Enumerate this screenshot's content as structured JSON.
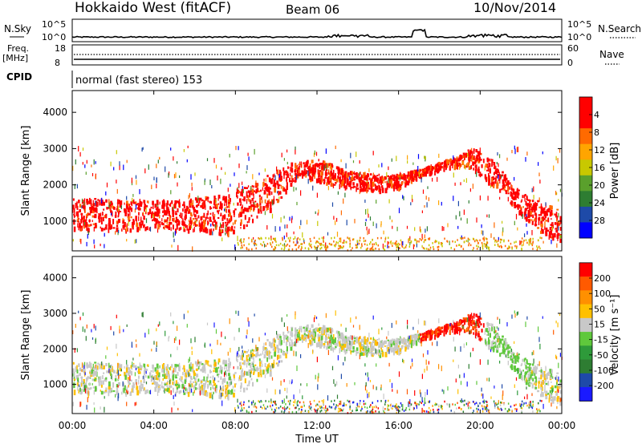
{
  "header": {
    "station": "Hokkaido West (fitACF)",
    "beam": "Beam 06",
    "date": "10/Nov/2014"
  },
  "noise_panel": {
    "left_label": "N.Sky",
    "right_label": "N.Search",
    "ticks": [
      "10^5",
      "10^0"
    ]
  },
  "freq_panel": {
    "left_label_line1": "Freq.",
    "left_label_line2": "[MHz]",
    "left_ticks": [
      "18",
      "8"
    ],
    "right_label": "Nave",
    "right_ticks": [
      "60",
      "0"
    ]
  },
  "cpid_panel": {
    "label": "CPID",
    "value": "normal (fast stereo) 153"
  },
  "chart_data": [
    {
      "type": "heatmap",
      "name": "power",
      "ylabel": "Slant Range [km]",
      "ylim": [
        180,
        4600
      ],
      "yticks": [
        1000,
        2000,
        3000,
        4000
      ],
      "xlim": [
        0,
        24
      ],
      "colorbar": {
        "label": "Power [dB]",
        "ticks": [
          "4",
          "8",
          "12",
          "16",
          "20",
          "24",
          "28"
        ],
        "colors": [
          "#0000ff",
          "#1e4aa8",
          "#2e7d32",
          "#5aa02c",
          "#c8c800",
          "#ffa500",
          "#ff6a00",
          "#ff0000",
          "#ff0000"
        ]
      }
    },
    {
      "type": "heatmap",
      "name": "velocity",
      "ylabel": "Slant Range [km]",
      "ylim": [
        180,
        4600
      ],
      "yticks": [
        1000,
        2000,
        3000,
        4000
      ],
      "xlim": [
        0,
        24
      ],
      "colorbar": {
        "label": "Velocity [m s⁻¹]",
        "ticks": [
          "200",
          "100",
          "50",
          "15",
          "-15",
          "-50",
          "-100",
          "-200"
        ],
        "colors": [
          "#1a1aff",
          "#1e4aa8",
          "#2e7d32",
          "#2e9a3a",
          "#5fc83c",
          "#c8c8c8",
          "#ffc000",
          "#ff9000",
          "#ff5a00",
          "#ff0000"
        ]
      }
    }
  ],
  "xaxis": {
    "title": "Time UT",
    "ticks": [
      "00:00",
      "04:00",
      "08:00",
      "12:00",
      "16:00",
      "20:00",
      "00:00"
    ]
  }
}
